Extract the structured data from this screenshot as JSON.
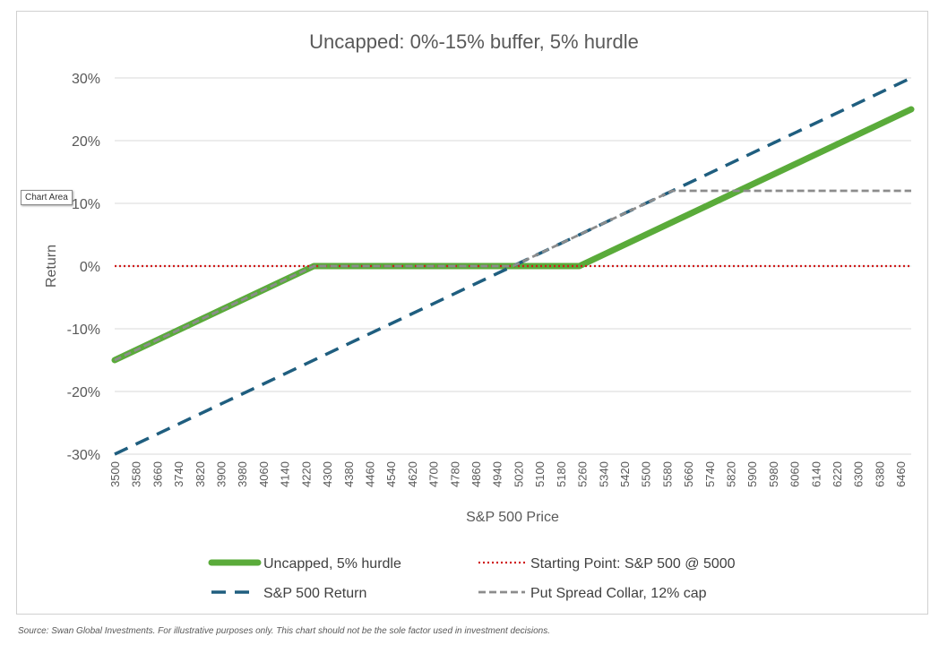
{
  "tooltip": "Chart Area",
  "source_note": "Source: Swan Global Investments. For illustrative purposes only. This chart should not be the sole factor used in investment decisions.",
  "colors": {
    "uncapped": "#5aab3a",
    "starting_point": "#d01c1c",
    "sp500": "#1f5e7f",
    "collar": "#8c8c8c",
    "grid": "#d9d9d9"
  },
  "chart_data": {
    "type": "line",
    "title": "Uncapped: 0%-15% buffer, 5% hurdle",
    "xlabel": "S&P 500 Price",
    "ylabel": "Return",
    "xlim": [
      3500,
      6500
    ],
    "ylim": [
      -0.3,
      0.3
    ],
    "y_ticks": [
      0.3,
      0.2,
      0.1,
      0.0,
      -0.1,
      -0.2,
      -0.3
    ],
    "y_tick_labels": [
      "30%",
      "20%",
      "10%",
      "0%",
      "-10%",
      "-20%",
      "-30%"
    ],
    "x_tick_labels": [
      "3500",
      "3580",
      "3660",
      "3740",
      "3820",
      "3900",
      "3980",
      "4060",
      "4140",
      "4220",
      "4300",
      "4380",
      "4460",
      "4540",
      "4620",
      "4700",
      "4780",
      "4860",
      "4940",
      "5020",
      "5100",
      "5180",
      "5260",
      "5340",
      "5420",
      "5500",
      "5580",
      "5660",
      "5740",
      "5820",
      "5900",
      "5980",
      "6060",
      "6140",
      "6220",
      "6300",
      "6380",
      "6460"
    ],
    "grid": "horizontal",
    "legend_position": "bottom",
    "series": [
      {
        "name": "Uncapped, 5% hurdle",
        "key": "uncapped",
        "style": "solid-thick",
        "points": [
          [
            3500,
            -0.15
          ],
          [
            4250,
            0.0
          ],
          [
            5250,
            0.0
          ],
          [
            6500,
            0.25
          ]
        ]
      },
      {
        "name": "Starting Point: S&P 500 @ 5000",
        "key": "starting_point",
        "style": "dotted",
        "points": [
          [
            3500,
            0.0
          ],
          [
            6500,
            0.0
          ]
        ]
      },
      {
        "name": "S&P 500 Return",
        "key": "sp500",
        "style": "dashed",
        "points": [
          [
            3500,
            -0.3
          ],
          [
            6500,
            0.3
          ]
        ]
      },
      {
        "name": "Put Spread Collar, 12% cap",
        "key": "collar",
        "style": "short-dash",
        "points": [
          [
            3500,
            -0.15
          ],
          [
            4250,
            0.0
          ],
          [
            5000,
            0.0
          ],
          [
            5600,
            0.12
          ],
          [
            6500,
            0.12
          ]
        ]
      }
    ],
    "legend_order": [
      "uncapped",
      "starting_point",
      "sp500",
      "collar"
    ]
  }
}
